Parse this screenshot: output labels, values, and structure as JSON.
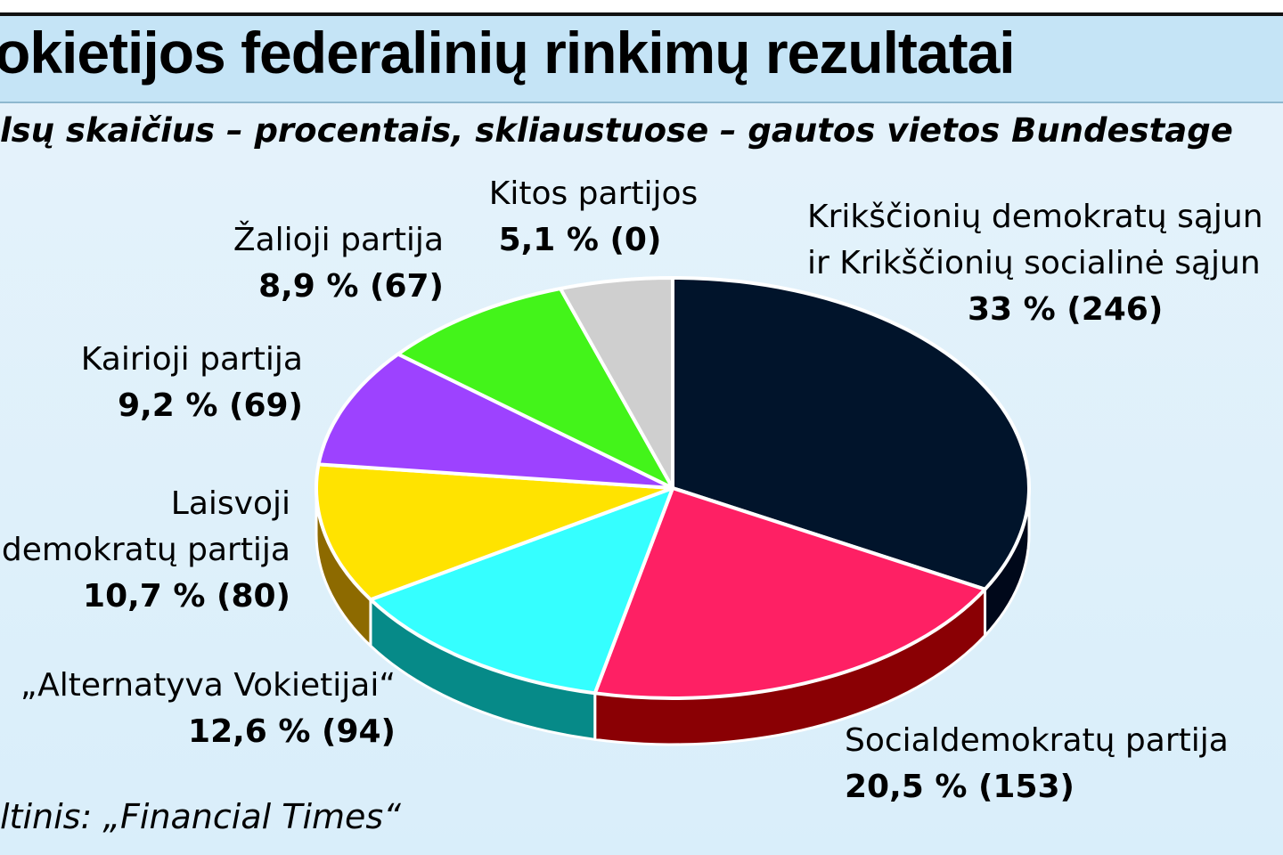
{
  "title": "okietijos federalinių rinkimų rezultatai",
  "subtitle": "lsų skaičius – procentais, skliaustuose – gautos vietos Bundestage",
  "source": "ltinis: „Financial Times“",
  "chart_data": {
    "type": "pie",
    "title": "okietijos federalinių rinkimų rezultatai",
    "subtitle": "lsų skaičius – procentais, skliaustuose – gautos vietos Bundestage",
    "slices": [
      {
        "name_lines": [
          "Krikščionių demokratų sąjun",
          "ir Krikščionių socialinė sąjun"
        ],
        "percent": 33,
        "seats": 246,
        "value_text": "33 % (246)",
        "color": "#01142b",
        "side_color": "#00081a"
      },
      {
        "name_lines": [
          "Socialdemokratų partija"
        ],
        "percent": 20.5,
        "seats": 153,
        "value_text": "20,5 % (153)",
        "color": "#fe2064",
        "side_color": "#8a0004"
      },
      {
        "name_lines": [
          "„Alternatyva Vokietijai“"
        ],
        "percent": 12.6,
        "seats": 94,
        "value_text": "12,6 % (94)",
        "color": "#35ffff",
        "side_color": "#068a88"
      },
      {
        "name_lines": [
          "Laisvoji",
          "demokratų partija"
        ],
        "percent": 10.7,
        "seats": 80,
        "value_text": "10,7 % (80)",
        "color": "#ffe300",
        "side_color": "#8d6a00"
      },
      {
        "name_lines": [
          "Kairioji partija"
        ],
        "percent": 9.2,
        "seats": 69,
        "value_text": "9,2 % (69)",
        "color": "#9d42ff",
        "side_color": "#4e1a8a"
      },
      {
        "name_lines": [
          "Žalioji partija"
        ],
        "percent": 8.9,
        "seats": 67,
        "value_text": "8,9 % (67)",
        "color": "#43f41a",
        "side_color": "#1e7a08"
      },
      {
        "name_lines": [
          "Kitos partijos"
        ],
        "percent": 5.1,
        "seats": 0,
        "value_text": "5,1 % (0)",
        "color": "#cfcfcf",
        "side_color": "#7a7a7a"
      }
    ],
    "background_color": "#ddf0fb",
    "title_band_color": "#c5e4f6"
  }
}
